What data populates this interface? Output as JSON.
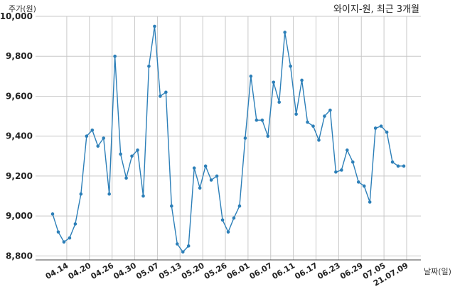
{
  "chart_data": {
    "type": "line",
    "title": "와이지-원, 최근 3개월",
    "ylabel": "주가(원)",
    "xlabel": "날짜(일)",
    "ylim": [
      8780,
      10000
    ],
    "yticks": [
      8800,
      9000,
      9200,
      9400,
      9600,
      9800,
      10000
    ],
    "ytick_labels": [
      "8,800",
      "9,000",
      "9,200",
      "9,400",
      "9,600",
      "9,800",
      "10,000"
    ],
    "xtick_labels": [
      "04.14",
      "04.20",
      "04.26",
      "04.30",
      "05.07",
      "05.13",
      "05.20",
      "05.26",
      "06.01",
      "06.07",
      "06.11",
      "06.17",
      "06.23",
      "06.29",
      "07.05",
      "21.07.09"
    ],
    "xtick_positions": [
      2.5,
      6.5,
      10.5,
      14.5,
      18.5,
      22.5,
      26.5,
      30.5,
      34.5,
      38.5,
      42.5,
      46.5,
      50.5,
      54.5,
      58.5,
      62.5
    ],
    "grid": true,
    "series": [
      {
        "color": "#2c7fb8",
        "x": [
          0,
          1,
          2,
          3,
          4,
          5,
          6,
          7,
          8,
          9,
          10,
          11,
          12,
          13,
          14,
          15,
          16,
          17,
          18,
          19,
          20,
          21,
          22,
          23,
          24,
          25,
          26,
          27,
          28,
          29,
          30,
          31,
          32,
          33,
          34,
          35,
          36,
          37,
          38,
          39,
          40,
          41,
          42,
          43,
          44,
          45,
          46,
          47,
          48,
          49,
          50,
          51,
          52,
          53,
          54,
          55,
          56,
          57,
          58,
          59,
          60,
          61,
          62
        ],
        "values": [
          9010,
          8920,
          8870,
          8890,
          8960,
          9110,
          9400,
          9430,
          9350,
          9390,
          9110,
          9800,
          9310,
          9190,
          9300,
          9330,
          9100,
          9750,
          9950,
          9600,
          9620,
          9050,
          8860,
          8820,
          8850,
          9240,
          9140,
          9250,
          9180,
          9200,
          8980,
          8920,
          8990,
          9050,
          9390,
          9700,
          9480,
          9480,
          9400,
          9670,
          9570,
          9920,
          9750,
          9510,
          9680,
          9470,
          9450,
          9380,
          9500,
          9530,
          9220,
          9230,
          9330,
          9270,
          9170,
          9150,
          9070,
          9440,
          9450,
          9420,
          9270,
          9250,
          9250
        ]
      }
    ]
  }
}
